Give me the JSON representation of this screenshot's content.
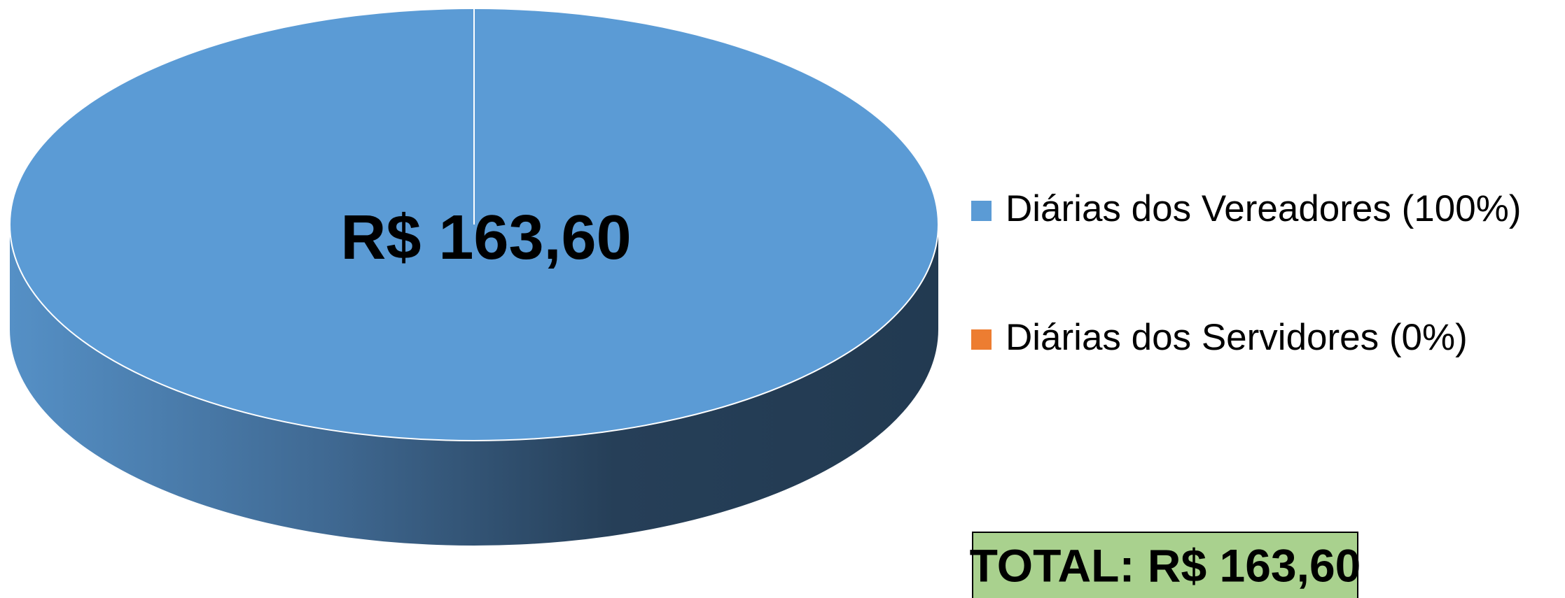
{
  "chart_data": {
    "type": "pie3d",
    "categories": [
      "Diárias dos Vereadores (100%)",
      "Diárias dos Servidores (0%)"
    ],
    "values": [
      163.6,
      0
    ],
    "value_labels": [
      "R$ 163,60",
      null
    ],
    "colors": [
      "#5b9bd5",
      "#ed7d31"
    ],
    "legend": "right",
    "annotations": [
      "TOTAL: R$ 163,60"
    ],
    "annotation_color": "#a9d18e"
  }
}
